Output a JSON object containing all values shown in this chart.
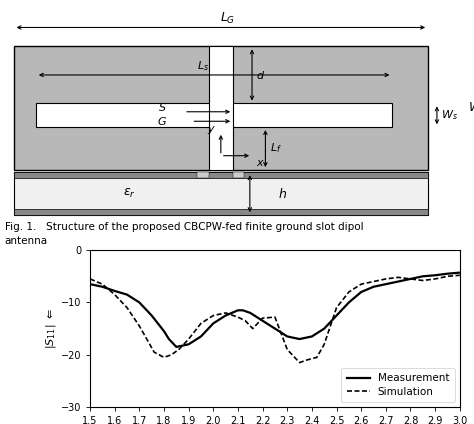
{
  "fig_width": 4.74,
  "fig_height": 4.24,
  "dpi": 100,
  "graph": {
    "xlim": [
      1.5,
      3.0
    ],
    "ylim": [
      -30,
      0
    ],
    "xticks": [
      1.5,
      1.6,
      1.7,
      1.8,
      1.9,
      2.0,
      2.1,
      2.2,
      2.3,
      2.4,
      2.5,
      2.6,
      2.7,
      2.8,
      2.9,
      3.0
    ],
    "xtick_labels": [
      "1.5",
      "1.6",
      "1.7",
      "1.8",
      "1.9",
      "2.0",
      "2.1",
      "2.2",
      "2.3",
      "2.4",
      "2.5",
      "2.6",
      "2.7",
      "2.8",
      "2.9",
      "3.0"
    ],
    "yticks": [
      0,
      -10,
      -20,
      -30
    ],
    "measurement_color": "#000000",
    "simulation_color": "#000000",
    "meas_x": [
      1.5,
      1.55,
      1.6,
      1.65,
      1.7,
      1.75,
      1.8,
      1.82,
      1.85,
      1.9,
      1.95,
      2.0,
      2.05,
      2.1,
      2.12,
      2.15,
      2.2,
      2.25,
      2.3,
      2.35,
      2.4,
      2.45,
      2.5,
      2.55,
      2.6,
      2.65,
      2.7,
      2.75,
      2.8,
      2.85,
      2.9,
      2.95,
      3.0
    ],
    "meas_y": [
      -6.5,
      -7.0,
      -7.8,
      -8.5,
      -10.0,
      -12.5,
      -15.5,
      -17.0,
      -18.5,
      -18.0,
      -16.5,
      -14.0,
      -12.5,
      -11.5,
      -11.5,
      -12.0,
      -13.5,
      -15.0,
      -16.5,
      -17.0,
      -16.5,
      -15.0,
      -12.5,
      -10.0,
      -8.0,
      -7.0,
      -6.5,
      -6.0,
      -5.5,
      -5.0,
      -4.8,
      -4.5,
      -4.3
    ],
    "sim_x": [
      1.5,
      1.55,
      1.6,
      1.65,
      1.7,
      1.73,
      1.76,
      1.8,
      1.83,
      1.86,
      1.9,
      1.95,
      2.0,
      2.05,
      2.1,
      2.13,
      2.16,
      2.2,
      2.25,
      2.3,
      2.35,
      2.38,
      2.42,
      2.45,
      2.5,
      2.55,
      2.6,
      2.65,
      2.7,
      2.75,
      2.8,
      2.85,
      2.9,
      2.95,
      3.0
    ],
    "sim_y": [
      -5.5,
      -6.5,
      -8.5,
      -11.0,
      -14.5,
      -17.0,
      -19.5,
      -20.5,
      -20.0,
      -19.0,
      -17.0,
      -14.0,
      -12.5,
      -12.0,
      -12.8,
      -13.5,
      -15.0,
      -13.0,
      -12.8,
      -19.0,
      -21.5,
      -21.0,
      -20.5,
      -18.0,
      -11.0,
      -8.0,
      -6.5,
      -6.0,
      -5.5,
      -5.2,
      -5.5,
      -5.8,
      -5.5,
      -5.0,
      -4.8
    ]
  },
  "caption_line1": "Fig. 1.   Structure of the proposed CBCPW-fed finite ground slot dipol",
  "caption_line2": "antenna"
}
